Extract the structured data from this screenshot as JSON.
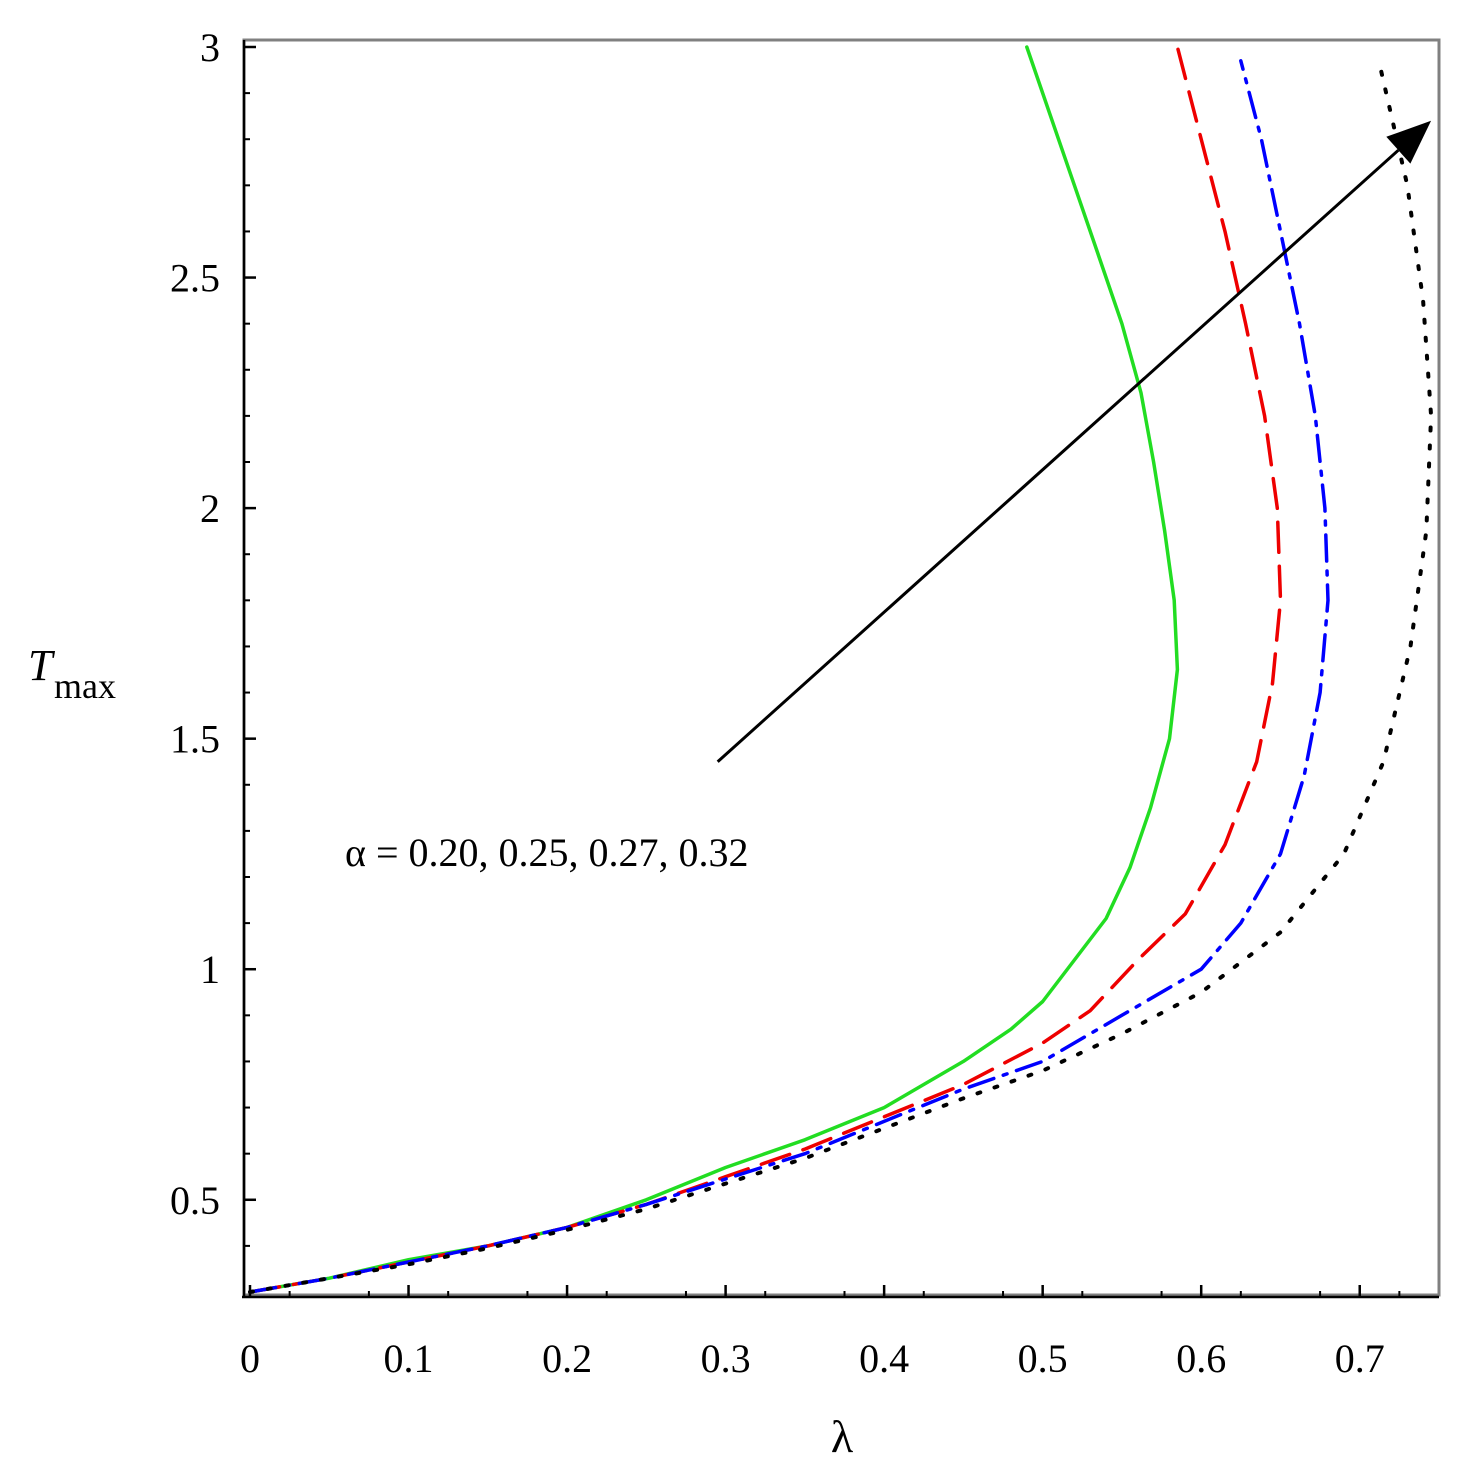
{
  "chart_data": {
    "type": "line",
    "title": "",
    "xlabel": "λ",
    "ylabel": {
      "main": "T",
      "subscript": "max"
    },
    "xlim": [
      0,
      0.75
    ],
    "ylim": [
      0.3,
      3.0
    ],
    "xticks": [
      0,
      0.1,
      0.2,
      0.3,
      0.4,
      0.5,
      0.6,
      0.7
    ],
    "xtick_labels": [
      "0",
      "0.1",
      "0.2",
      "0.3",
      "0.4",
      "0.5",
      "0.6",
      "0.7"
    ],
    "yticks": [
      0.5,
      1,
      1.5,
      2,
      2.5,
      3
    ],
    "ytick_labels": [
      "0.5",
      "1",
      "1.5",
      "2",
      "2.5",
      "3"
    ],
    "grid": false,
    "annotation": {
      "text": "α = 0.20, 0.25, 0.27, 0.32",
      "arrow": {
        "from": [
          0.295,
          1.45
        ],
        "to": [
          0.745,
          2.84
        ]
      }
    },
    "series": [
      {
        "style": "solid",
        "color": "#22dd22",
        "points": [
          [
            0,
            0.3
          ],
          [
            0.05,
            0.33
          ],
          [
            0.1,
            0.37
          ],
          [
            0.15,
            0.4
          ],
          [
            0.2,
            0.44
          ],
          [
            0.25,
            0.5
          ],
          [
            0.3,
            0.57
          ],
          [
            0.35,
            0.63
          ],
          [
            0.4,
            0.7
          ],
          [
            0.45,
            0.8
          ],
          [
            0.48,
            0.87
          ],
          [
            0.5,
            0.93
          ],
          [
            0.52,
            1.02
          ],
          [
            0.54,
            1.11
          ],
          [
            0.555,
            1.22
          ],
          [
            0.568,
            1.35
          ],
          [
            0.58,
            1.5
          ],
          [
            0.585,
            1.65
          ],
          [
            0.583,
            1.8
          ],
          [
            0.577,
            1.95
          ],
          [
            0.57,
            2.1
          ],
          [
            0.562,
            2.25
          ],
          [
            0.55,
            2.4
          ],
          [
            0.535,
            2.55
          ],
          [
            0.52,
            2.7
          ],
          [
            0.505,
            2.85
          ],
          [
            0.49,
            3.0
          ]
        ]
      },
      {
        "style": "dash",
        "color": "#ee0000",
        "points": [
          [
            0,
            0.3
          ],
          [
            0.05,
            0.33
          ],
          [
            0.1,
            0.365
          ],
          [
            0.15,
            0.4
          ],
          [
            0.2,
            0.44
          ],
          [
            0.25,
            0.49
          ],
          [
            0.3,
            0.55
          ],
          [
            0.35,
            0.61
          ],
          [
            0.4,
            0.68
          ],
          [
            0.45,
            0.75
          ],
          [
            0.5,
            0.84
          ],
          [
            0.53,
            0.91
          ],
          [
            0.56,
            1.02
          ],
          [
            0.59,
            1.12
          ],
          [
            0.615,
            1.27
          ],
          [
            0.635,
            1.45
          ],
          [
            0.645,
            1.62
          ],
          [
            0.65,
            1.8
          ],
          [
            0.648,
            2.0
          ],
          [
            0.64,
            2.2
          ],
          [
            0.628,
            2.4
          ],
          [
            0.615,
            2.6
          ],
          [
            0.6,
            2.8
          ],
          [
            0.585,
            3.0
          ]
        ]
      },
      {
        "style": "dashdot",
        "color": "#0000ff",
        "points": [
          [
            0,
            0.3
          ],
          [
            0.05,
            0.33
          ],
          [
            0.1,
            0.365
          ],
          [
            0.15,
            0.4
          ],
          [
            0.2,
            0.44
          ],
          [
            0.25,
            0.49
          ],
          [
            0.3,
            0.545
          ],
          [
            0.35,
            0.6
          ],
          [
            0.4,
            0.67
          ],
          [
            0.45,
            0.74
          ],
          [
            0.5,
            0.8
          ],
          [
            0.55,
            0.9
          ],
          [
            0.6,
            1.0
          ],
          [
            0.625,
            1.1
          ],
          [
            0.65,
            1.25
          ],
          [
            0.665,
            1.42
          ],
          [
            0.675,
            1.6
          ],
          [
            0.68,
            1.8
          ],
          [
            0.678,
            2.0
          ],
          [
            0.672,
            2.2
          ],
          [
            0.662,
            2.4
          ],
          [
            0.65,
            2.6
          ],
          [
            0.638,
            2.8
          ],
          [
            0.625,
            2.97
          ]
        ]
      },
      {
        "style": "dot",
        "color": "#000000",
        "points": [
          [
            0,
            0.3
          ],
          [
            0.05,
            0.33
          ],
          [
            0.1,
            0.36
          ],
          [
            0.15,
            0.395
          ],
          [
            0.2,
            0.435
          ],
          [
            0.25,
            0.48
          ],
          [
            0.3,
            0.535
          ],
          [
            0.35,
            0.59
          ],
          [
            0.4,
            0.655
          ],
          [
            0.45,
            0.72
          ],
          [
            0.5,
            0.78
          ],
          [
            0.55,
            0.86
          ],
          [
            0.6,
            0.95
          ],
          [
            0.65,
            1.08
          ],
          [
            0.69,
            1.25
          ],
          [
            0.715,
            1.45
          ],
          [
            0.732,
            1.7
          ],
          [
            0.742,
            1.95
          ],
          [
            0.745,
            2.2
          ],
          [
            0.74,
            2.45
          ],
          [
            0.73,
            2.7
          ],
          [
            0.712,
            2.97
          ]
        ]
      }
    ]
  }
}
